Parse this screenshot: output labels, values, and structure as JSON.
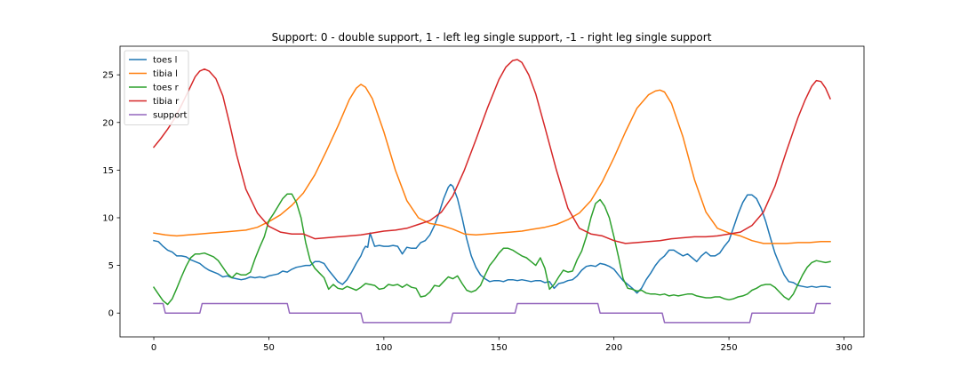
{
  "chart_data": {
    "type": "line",
    "title": "Support: 0 - double support, 1 - left leg single support, -1 - right leg single support",
    "xlabel": "",
    "ylabel": "",
    "xlim": [
      -14.7,
      308.7
    ],
    "ylim": [
      -2.5,
      28.0
    ],
    "xticks": [
      0,
      50,
      100,
      150,
      200,
      250,
      300
    ],
    "yticks": [
      0,
      5,
      10,
      15,
      20,
      25
    ],
    "grid": false,
    "legend": "top-left",
    "series": [
      {
        "name": "toes l",
        "color": "#1f77b4",
        "x": [
          0,
          2,
          4,
          6,
          8,
          10,
          12,
          14,
          16,
          18,
          20,
          22,
          24,
          26,
          28,
          30,
          32,
          34,
          36,
          38,
          40,
          42,
          44,
          46,
          48,
          50,
          52,
          54,
          56,
          58,
          60,
          62,
          64,
          66,
          68,
          70,
          72,
          74,
          76,
          78,
          80,
          82,
          84,
          86,
          88,
          90,
          91,
          92,
          93,
          94,
          96,
          98,
          100,
          102,
          104,
          106,
          108,
          110,
          112,
          114,
          116,
          118,
          120,
          122,
          124,
          126,
          128,
          129,
          130,
          132,
          134,
          136,
          138,
          140,
          142,
          144,
          146,
          148,
          150,
          152,
          154,
          156,
          158,
          160,
          162,
          164,
          166,
          168,
          170,
          172,
          174,
          176,
          178,
          180,
          182,
          184,
          186,
          188,
          190,
          192,
          194,
          196,
          198,
          200,
          202,
          204,
          206,
          208,
          210,
          212,
          214,
          216,
          218,
          220,
          222,
          224,
          226,
          228,
          230,
          232,
          234,
          236,
          238,
          240,
          242,
          244,
          246,
          248,
          250,
          252,
          254,
          256,
          258,
          260,
          262,
          264,
          266,
          268,
          270,
          272,
          274,
          276,
          278,
          280,
          282,
          284,
          286,
          288,
          290,
          292,
          294
        ],
        "y": [
          7.6,
          7.5,
          7.0,
          6.6,
          6.4,
          6.0,
          6.0,
          5.9,
          5.6,
          5.4,
          5.2,
          4.8,
          4.5,
          4.3,
          4.1,
          3.8,
          3.9,
          3.7,
          3.6,
          3.5,
          3.6,
          3.8,
          3.7,
          3.8,
          3.7,
          3.9,
          4.0,
          4.1,
          4.4,
          4.3,
          4.6,
          4.8,
          4.9,
          5.0,
          5.0,
          5.4,
          5.4,
          5.2,
          4.5,
          3.9,
          3.3,
          3.0,
          3.5,
          4.3,
          5.2,
          6.0,
          6.6,
          7.0,
          6.9,
          8.4,
          7.0,
          7.1,
          7.0,
          7.0,
          7.1,
          7.0,
          6.2,
          6.9,
          6.8,
          6.8,
          7.4,
          7.6,
          8.2,
          9.2,
          10.5,
          12.0,
          13.2,
          13.5,
          13.3,
          12.0,
          10.0,
          7.8,
          6.0,
          4.8,
          4.0,
          3.6,
          3.3,
          3.4,
          3.4,
          3.3,
          3.5,
          3.5,
          3.4,
          3.5,
          3.4,
          3.3,
          3.4,
          3.4,
          3.2,
          3.3,
          2.6,
          3.1,
          3.2,
          3.4,
          3.5,
          3.9,
          4.5,
          4.9,
          5.0,
          4.9,
          5.2,
          5.1,
          4.9,
          4.6,
          4.0,
          3.4,
          3.0,
          2.6,
          2.1,
          2.6,
          3.5,
          4.2,
          5.0,
          5.6,
          6.0,
          6.6,
          6.6,
          6.3,
          6.0,
          6.2,
          5.8,
          5.4,
          6.0,
          6.4,
          6.0,
          6.0,
          6.3,
          7.0,
          7.6,
          9.0,
          10.4,
          11.6,
          12.4,
          12.4,
          12.0,
          11.0,
          9.6,
          7.9,
          6.3,
          5.1,
          4.0,
          3.3,
          3.2,
          2.9,
          2.8,
          2.7,
          2.8,
          2.7,
          2.8,
          2.8,
          2.7
        ]
      },
      {
        "name": "tibia l",
        "color": "#ff7f0e",
        "x": [
          0,
          5,
          10,
          15,
          20,
          25,
          30,
          35,
          40,
          45,
          50,
          55,
          60,
          65,
          70,
          75,
          80,
          85,
          88,
          90,
          92,
          95,
          100,
          105,
          110,
          115,
          120,
          125,
          130,
          135,
          140,
          145,
          150,
          155,
          160,
          165,
          170,
          175,
          180,
          185,
          190,
          195,
          200,
          205,
          210,
          215,
          218,
          220,
          222,
          225,
          230,
          235,
          240,
          245,
          250,
          255,
          260,
          265,
          270,
          275,
          280,
          285,
          290,
          294
        ],
        "y": [
          8.4,
          8.2,
          8.1,
          8.2,
          8.3,
          8.4,
          8.5,
          8.6,
          8.7,
          9.0,
          9.6,
          10.3,
          11.3,
          12.6,
          14.5,
          17.0,
          19.6,
          22.4,
          23.6,
          24.0,
          23.7,
          22.5,
          19.0,
          15.0,
          11.8,
          10.0,
          9.4,
          9.2,
          8.8,
          8.3,
          8.2,
          8.3,
          8.4,
          8.5,
          8.6,
          8.8,
          9.0,
          9.3,
          9.8,
          10.5,
          11.8,
          13.8,
          16.3,
          19.0,
          21.5,
          22.9,
          23.3,
          23.4,
          23.2,
          22.0,
          18.5,
          14.0,
          10.6,
          8.9,
          8.4,
          8.1,
          7.6,
          7.3,
          7.3,
          7.3,
          7.4,
          7.4,
          7.5,
          7.5
        ]
      },
      {
        "name": "toes r",
        "color": "#2ca02c",
        "x": [
          0,
          2,
          4,
          6,
          8,
          10,
          12,
          14,
          16,
          18,
          20,
          22,
          24,
          26,
          28,
          30,
          32,
          34,
          36,
          38,
          40,
          42,
          44,
          46,
          48,
          50,
          52,
          54,
          56,
          58,
          60,
          62,
          64,
          66,
          68,
          70,
          72,
          74,
          76,
          78,
          80,
          82,
          84,
          86,
          88,
          90,
          92,
          94,
          96,
          98,
          100,
          102,
          104,
          106,
          108,
          110,
          112,
          114,
          116,
          118,
          120,
          122,
          124,
          126,
          128,
          130,
          132,
          134,
          136,
          138,
          140,
          142,
          144,
          146,
          148,
          150,
          152,
          154,
          156,
          158,
          160,
          162,
          164,
          166,
          168,
          170,
          172,
          174,
          176,
          178,
          180,
          182,
          184,
          186,
          188,
          190,
          192,
          194,
          196,
          198,
          200,
          202,
          204,
          206,
          208,
          210,
          212,
          214,
          216,
          218,
          220,
          222,
          224,
          226,
          228,
          230,
          232,
          234,
          236,
          238,
          240,
          242,
          244,
          246,
          248,
          250,
          252,
          254,
          256,
          258,
          260,
          262,
          264,
          266,
          268,
          270,
          272,
          274,
          276,
          278,
          280,
          282,
          284,
          286,
          288,
          290,
          292,
          294
        ],
        "y": [
          2.7,
          2.0,
          1.3,
          0.9,
          1.5,
          2.6,
          3.8,
          4.9,
          5.8,
          6.2,
          6.2,
          6.3,
          6.1,
          5.9,
          5.5,
          4.8,
          4.1,
          3.7,
          4.2,
          4.0,
          4.0,
          4.3,
          5.7,
          6.9,
          8.0,
          9.7,
          10.4,
          11.2,
          12.0,
          12.5,
          12.5,
          11.6,
          10.0,
          7.4,
          5.5,
          4.7,
          4.2,
          3.7,
          2.5,
          3.0,
          2.6,
          2.5,
          2.8,
          2.6,
          2.4,
          2.7,
          3.1,
          3.0,
          2.9,
          2.5,
          2.6,
          3.0,
          2.9,
          3.0,
          2.7,
          3.0,
          2.7,
          2.6,
          1.7,
          1.8,
          2.2,
          2.9,
          2.8,
          3.3,
          3.8,
          3.6,
          3.9,
          3.1,
          2.4,
          2.2,
          2.4,
          2.9,
          4.0,
          5.0,
          5.6,
          6.3,
          6.8,
          6.8,
          6.6,
          6.3,
          6.0,
          5.8,
          5.4,
          5.0,
          5.8,
          4.7,
          2.5,
          3.0,
          3.8,
          4.5,
          4.3,
          4.4,
          5.6,
          6.5,
          8.0,
          10.0,
          11.5,
          11.9,
          11.2,
          10.0,
          8.0,
          5.9,
          3.6,
          2.6,
          2.5,
          2.3,
          2.4,
          2.1,
          2.0,
          2.0,
          1.9,
          2.0,
          1.8,
          1.9,
          1.8,
          1.9,
          2.0,
          2.0,
          1.8,
          1.7,
          1.6,
          1.6,
          1.7,
          1.7,
          1.5,
          1.4,
          1.5,
          1.7,
          1.8,
          2.0,
          2.4,
          2.6,
          2.9,
          3.0,
          3.0,
          2.7,
          2.2,
          1.7,
          1.4,
          2.0,
          3.0,
          4.0,
          4.8,
          5.3,
          5.5,
          5.4,
          5.3,
          5.4
        ]
      },
      {
        "name": "tibia r",
        "color": "#d62728",
        "x": [
          0,
          3,
          6,
          9,
          12,
          15,
          18,
          20,
          22,
          24,
          27,
          30,
          33,
          36,
          40,
          45,
          50,
          55,
          60,
          65,
          70,
          75,
          80,
          85,
          90,
          95,
          100,
          105,
          110,
          115,
          120,
          125,
          130,
          135,
          140,
          145,
          150,
          153,
          156,
          158,
          160,
          163,
          166,
          170,
          175,
          180,
          185,
          190,
          195,
          200,
          205,
          210,
          215,
          220,
          225,
          230,
          235,
          240,
          245,
          250,
          255,
          260,
          265,
          270,
          275,
          280,
          283,
          286,
          288,
          290,
          292,
          294
        ],
        "y": [
          17.4,
          18.3,
          19.3,
          20.4,
          21.8,
          23.3,
          24.8,
          25.4,
          25.6,
          25.4,
          24.6,
          22.8,
          19.8,
          16.6,
          13.0,
          10.5,
          9.1,
          8.5,
          8.3,
          8.3,
          7.8,
          7.9,
          8.0,
          8.1,
          8.2,
          8.4,
          8.6,
          8.7,
          8.9,
          9.3,
          9.7,
          10.6,
          12.3,
          15.0,
          18.2,
          21.5,
          24.5,
          25.8,
          26.5,
          26.6,
          26.3,
          25.0,
          23.0,
          19.5,
          15.0,
          11.0,
          8.9,
          8.3,
          8.1,
          7.6,
          7.3,
          7.4,
          7.5,
          7.6,
          7.8,
          7.9,
          8.0,
          8.0,
          8.1,
          8.3,
          8.5,
          9.2,
          10.6,
          13.3,
          17.0,
          20.5,
          22.3,
          23.8,
          24.4,
          24.3,
          23.6,
          22.5
        ]
      },
      {
        "name": "support",
        "color": "#9467bd",
        "x": [
          0,
          4,
          5,
          20,
          21,
          58,
          59,
          90,
          91,
          129,
          130,
          157,
          158,
          193,
          194,
          221,
          222,
          259,
          260,
          287,
          288,
          294
        ],
        "y": [
          1,
          1,
          0,
          0,
          1,
          1,
          0,
          0,
          -1,
          -1,
          0,
          0,
          1,
          1,
          0,
          0,
          -1,
          -1,
          0,
          0,
          1,
          1
        ]
      }
    ]
  }
}
